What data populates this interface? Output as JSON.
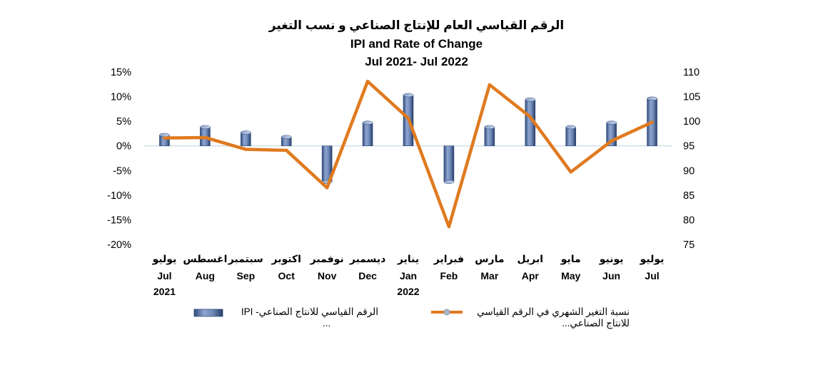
{
  "chart_data": {
    "type": "bar",
    "title_ar": "الرقم القياسي العام للإنتاج الصناعي و نسب التغير",
    "title": "IPI and Rate of Change",
    "subtitle": "Jul 2021- Jul 2022",
    "categories_ar": [
      "يوليو",
      "اغسطس",
      "سبتمبر",
      "اكتوبر",
      "نوفمبر",
      "ديسمبر",
      "يناير",
      "فبراير",
      "مارس",
      "ابريل",
      "مايو",
      "يونيو",
      "يوليو"
    ],
    "categories_en": [
      "Jul",
      "Aug",
      "Sep",
      "Oct",
      "Nov",
      "Dec",
      "Jan",
      "Feb",
      "Mar",
      "Apr",
      "May",
      "Jun",
      "Jul"
    ],
    "year_labels": [
      "2021",
      "",
      "",
      "",
      "",
      "",
      "2022",
      "",
      "",
      "",
      "",
      "",
      ""
    ],
    "left_axis": {
      "ylim": [
        -20,
        15
      ],
      "ticks": [
        "15%",
        "10%",
        "5%",
        "0%",
        "-5%",
        "-10%",
        "-15%",
        "-20%"
      ],
      "tick_values": [
        15,
        10,
        5,
        0,
        -5,
        -10,
        -15,
        -20
      ]
    },
    "right_axis": {
      "ylim": [
        75,
        110
      ],
      "ticks": [
        "110",
        "105",
        "100",
        "95",
        "90",
        "85",
        "80",
        "75"
      ],
      "tick_values": [
        110,
        105,
        100,
        95,
        90,
        85,
        80,
        75
      ]
    },
    "series": [
      {
        "name": "الرقم القياسي للانتاج الصناعي- IPI ...",
        "axis": "left",
        "type": "bar",
        "values": [
          2.2,
          3.8,
          2.7,
          1.8,
          -7.3,
          4.7,
          10.3,
          -7.3,
          3.8,
          9.4,
          3.8,
          4.7,
          9.6
        ]
      },
      {
        "name": "نسبة التغير الشهري في الرقم القياسي للانتاج الصناعي...",
        "axis": "right",
        "type": "line",
        "values": [
          96.6,
          96.7,
          94.3,
          94.1,
          86.5,
          108.1,
          100.6,
          78.6,
          107.4,
          100.9,
          89.7,
          96.0,
          99.8
        ]
      }
    ],
    "grid": false,
    "legend_position": "bottom"
  },
  "legend": {
    "bars_label": "الرقم القياسي للانتاج الصناعي- IPI",
    "bars_label_cont": "...",
    "line_label_1": "نسبة التغير الشهري في الرقم القياسي",
    "line_label_2": "للانتاج الصناعي..."
  },
  "colors": {
    "bar": "#6f88b8",
    "bar_dark": "#2f4a7a",
    "line": "#e07a1f",
    "zero_line": "#bcd3dc"
  }
}
